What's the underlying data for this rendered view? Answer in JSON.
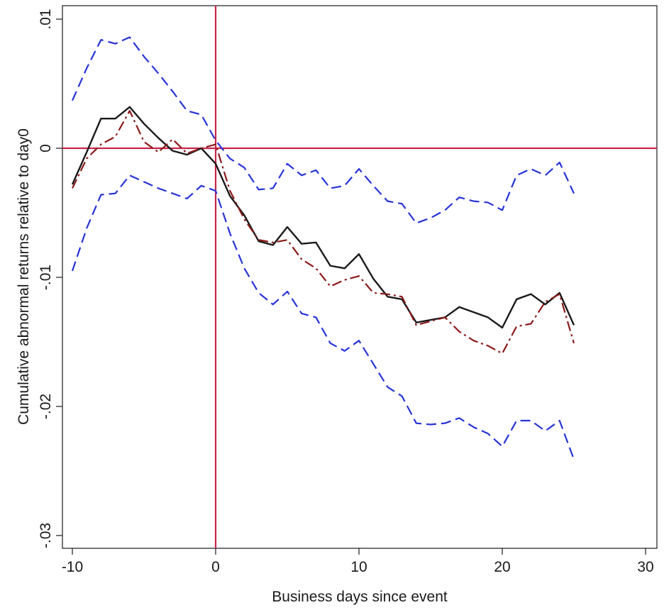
{
  "chart_data": {
    "type": "line",
    "title": "",
    "xlabel": "Business days since event",
    "ylabel": "Cumulative abnormal returns relative to day0",
    "xlim": [
      -10,
      30
    ],
    "ylim": [
      -0.03,
      0.01
    ],
    "x_ticks": [
      {
        "value": -10,
        "label": "-10"
      },
      {
        "value": 0,
        "label": "0"
      },
      {
        "value": 10,
        "label": "10"
      },
      {
        "value": 20,
        "label": "20"
      },
      {
        "value": 30,
        "label": "30"
      }
    ],
    "y_ticks": [
      {
        "value": 0.01,
        "label": ".01"
      },
      {
        "value": 0,
        "label": "0"
      },
      {
        "value": -0.01,
        "label": "-.01"
      },
      {
        "value": -0.02,
        "label": "-.02"
      },
      {
        "value": -0.03,
        "label": "-.03"
      }
    ],
    "grid": false,
    "legend": "none",
    "reference_lines": [
      {
        "axis": "x",
        "value": 0,
        "color": "#c8254a"
      },
      {
        "axis": "y",
        "value": 0,
        "color": "#c8254a"
      }
    ],
    "x": [
      -10,
      -9,
      -8,
      -7,
      -6,
      -5,
      -4,
      -3,
      -2,
      -1,
      0,
      1,
      2,
      3,
      4,
      5,
      6,
      7,
      8,
      9,
      10,
      11,
      12,
      13,
      14,
      15,
      16,
      17,
      18,
      19,
      20,
      21,
      22,
      23,
      24,
      25
    ],
    "series": [
      {
        "style": "solid",
        "color": "#1a1a1a",
        "values": [
          -0.0028,
          -0.0003,
          0.0023,
          0.0023,
          0.0032,
          0.0019,
          0.0008,
          -0.0002,
          -0.0005,
          0.0,
          -0.0012,
          -0.0037,
          -0.0052,
          -0.0072,
          -0.0075,
          -0.0061,
          -0.0074,
          -0.0073,
          -0.0091,
          -0.0093,
          -0.0082,
          -0.0101,
          -0.0115,
          -0.0117,
          -0.0135,
          -0.0133,
          -0.0131,
          -0.0123,
          -0.0127,
          -0.0131,
          -0.0139,
          -0.0117,
          -0.0113,
          -0.0121,
          -0.0112,
          -0.0137
        ]
      },
      {
        "style": "dash-dot",
        "color": "#8b1a1a",
        "values": [
          -0.0031,
          -0.0008,
          0.0003,
          0.0009,
          0.0029,
          0.0005,
          -0.0003,
          0.0007,
          -0.0004,
          0.0,
          0.0003,
          -0.0033,
          -0.0055,
          -0.0071,
          -0.0073,
          -0.0071,
          -0.0086,
          -0.0093,
          -0.0107,
          -0.0102,
          -0.0099,
          -0.0112,
          -0.0113,
          -0.0115,
          -0.0137,
          -0.0134,
          -0.0131,
          -0.0142,
          -0.0149,
          -0.0153,
          -0.0159,
          -0.0138,
          -0.0136,
          -0.0119,
          -0.0113,
          -0.0151
        ]
      },
      {
        "style": "dashed",
        "color": "#2633d6",
        "values": [
          0.0037,
          0.0062,
          0.0084,
          0.0081,
          0.0086,
          0.0071,
          0.0058,
          0.0044,
          0.0029,
          0.0026,
          0.0006,
          -0.0008,
          -0.0015,
          -0.0032,
          -0.0031,
          -0.0012,
          -0.0021,
          -0.0017,
          -0.0031,
          -0.0029,
          -0.0016,
          -0.0029,
          -0.0041,
          -0.0043,
          -0.0058,
          -0.0054,
          -0.0048,
          -0.0038,
          -0.0041,
          -0.0042,
          -0.0048,
          -0.0021,
          -0.0016,
          -0.0021,
          -0.0011,
          -0.0035
        ]
      },
      {
        "style": "dashed",
        "color": "#2633d6",
        "values": [
          -0.0095,
          -0.0062,
          -0.0036,
          -0.0035,
          -0.0021,
          -0.0026,
          -0.0031,
          -0.0035,
          -0.0039,
          -0.0029,
          -0.0033,
          -0.0066,
          -0.0093,
          -0.0112,
          -0.0121,
          -0.0111,
          -0.0128,
          -0.0131,
          -0.0151,
          -0.0157,
          -0.0149,
          -0.0167,
          -0.0185,
          -0.0192,
          -0.0213,
          -0.0214,
          -0.0213,
          -0.0209,
          -0.0216,
          -0.0221,
          -0.0231,
          -0.0211,
          -0.0211,
          -0.0219,
          -0.0211,
          -0.0241
        ]
      }
    ]
  }
}
